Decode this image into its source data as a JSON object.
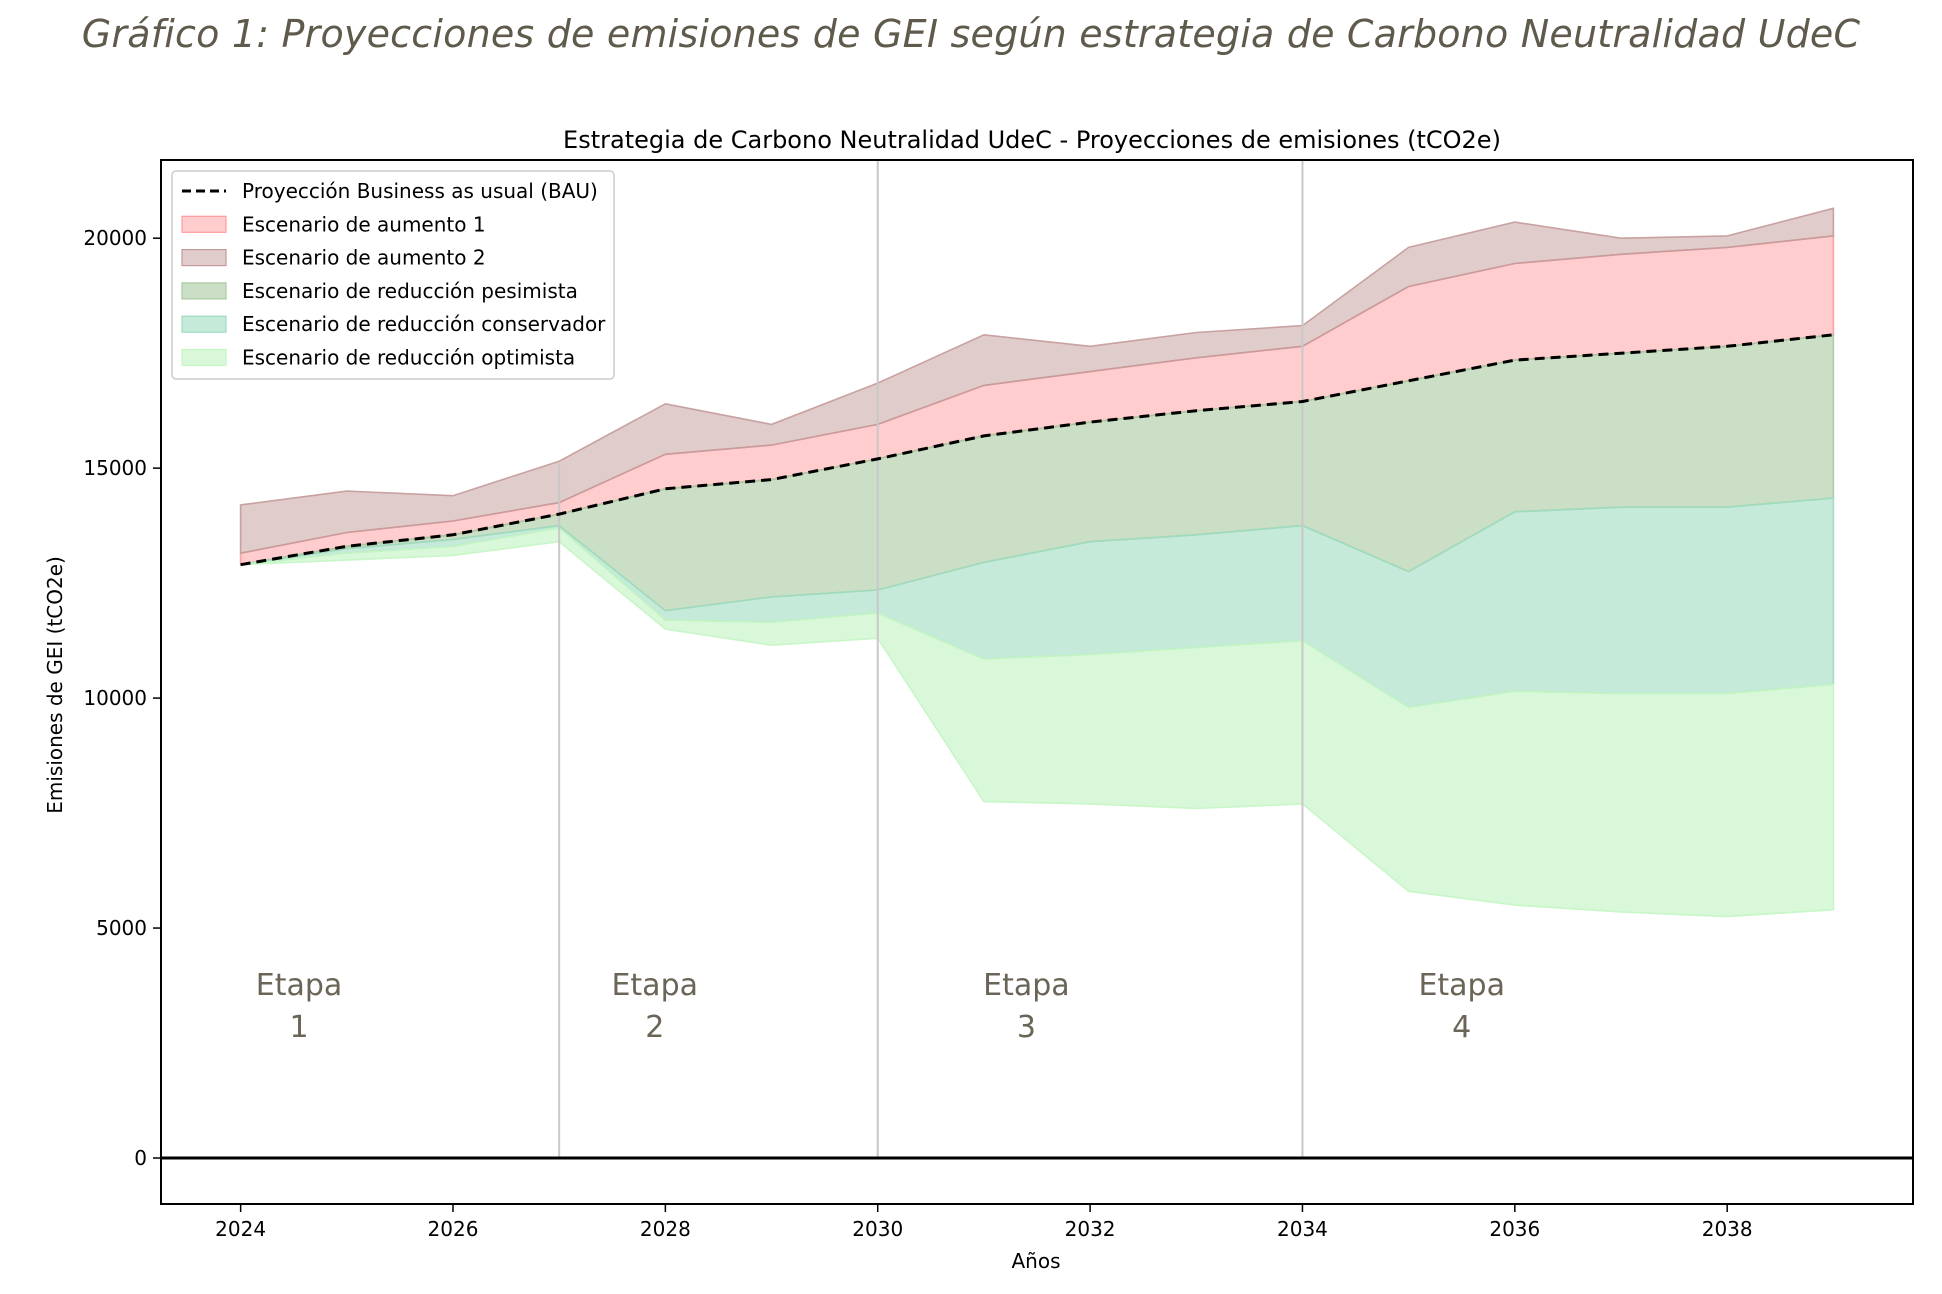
{
  "caption": "Gráfico 1: Proyecciones de emisiones de GEI según estrategia de Carbono Neutralidad UdeC",
  "chart_data": {
    "type": "area",
    "title": "Estrategia de Carbono Neutralidad UdeC - Proyecciones de emisiones (tCO2e)",
    "xlabel": "Años",
    "ylabel": "Emisiones de GEI (tCO2e)",
    "xlim": [
      2023.25,
      2039.75
    ],
    "ylim": [
      -1000,
      21700
    ],
    "xticks": [
      2024,
      2026,
      2028,
      2030,
      2032,
      2034,
      2036,
      2038
    ],
    "yticks": [
      0,
      5000,
      10000,
      15000,
      20000
    ],
    "grid": false,
    "legend_position": "top-left",
    "x": [
      2024,
      2025,
      2026,
      2027,
      2028,
      2029,
      2030,
      2031,
      2032,
      2033,
      2034,
      2035,
      2036,
      2037,
      2038,
      2039
    ],
    "series": [
      {
        "name": "Proyección Business as usual (BAU)",
        "kind": "line",
        "style": "dashed",
        "color": "#000000",
        "values": [
          12900,
          13300,
          13550,
          14000,
          14550,
          14750,
          15200,
          15700,
          16000,
          16250,
          16450,
          16900,
          17350,
          17500,
          17650,
          17900
        ]
      },
      {
        "name": "Escenario de aumento 1",
        "kind": "band",
        "color": "#ff9b9b",
        "alpha": 0.5,
        "lower": [
          12900,
          13300,
          13550,
          14000,
          14550,
          14750,
          15200,
          15700,
          16000,
          16250,
          16450,
          16900,
          17350,
          17500,
          17650,
          17900
        ],
        "upper": [
          13150,
          13600,
          13850,
          14250,
          15300,
          15500,
          15950,
          16800,
          17100,
          17400,
          17650,
          18950,
          19450,
          19650,
          19800,
          20050
        ]
      },
      {
        "name": "Escenario de aumento 2",
        "kind": "band",
        "color": "#c49a9a",
        "alpha": 0.5,
        "lower": [
          13150,
          13600,
          13850,
          14250,
          15300,
          15500,
          15950,
          16800,
          17100,
          17400,
          17650,
          18950,
          19450,
          19650,
          19800,
          20050
        ],
        "upper": [
          14200,
          14500,
          14400,
          15150,
          16400,
          15950,
          16850,
          17900,
          17650,
          17950,
          18100,
          19800,
          20350,
          20000,
          20050,
          20650
        ]
      },
      {
        "name": "Escenario de reducción pesimista",
        "kind": "band",
        "color": "#a8c9a0",
        "alpha": 0.6,
        "lower": [
          12900,
          13250,
          13450,
          13750,
          11900,
          12200,
          12350,
          12950,
          13400,
          13550,
          13750,
          12750,
          14050,
          14150,
          14150,
          14350
        ],
        "upper": [
          12900,
          13300,
          13550,
          14000,
          14550,
          14750,
          15200,
          15700,
          16000,
          16250,
          16450,
          16900,
          17350,
          17500,
          17650,
          17900
        ]
      },
      {
        "name": "Escenario de reducción conservador",
        "kind": "band",
        "color": "#9fdcbf",
        "alpha": 0.6,
        "lower": [
          12900,
          13150,
          13300,
          13700,
          11700,
          11650,
          11850,
          10850,
          10950,
          11100,
          11250,
          9800,
          10150,
          10100,
          10100,
          10300
        ],
        "upper": [
          12900,
          13250,
          13450,
          13750,
          11900,
          12200,
          12350,
          12950,
          13400,
          13550,
          13750,
          12750,
          14050,
          14150,
          14150,
          14350
        ]
      },
      {
        "name": "Escenario de reducción optimista",
        "kind": "band",
        "color": "#c4f5c4",
        "alpha": 0.65,
        "lower": [
          12900,
          13000,
          13100,
          13400,
          11500,
          11150,
          11300,
          7750,
          7700,
          7600,
          7700,
          5800,
          5500,
          5350,
          5250,
          5400
        ],
        "upper": [
          12900,
          13150,
          13300,
          13700,
          11700,
          11650,
          11850,
          10850,
          10950,
          11100,
          11250,
          9800,
          10150,
          10100,
          10100,
          10300
        ]
      }
    ],
    "stage_dividers": [
      2027,
      2030,
      2034
    ],
    "stages": [
      {
        "word": "Etapa",
        "num": "1",
        "x": 2024.55
      },
      {
        "word": "Etapa",
        "num": "2",
        "x": 2027.9
      },
      {
        "word": "Etapa",
        "num": "3",
        "x": 2031.4
      },
      {
        "word": "Etapa",
        "num": "4",
        "x": 2035.5
      }
    ]
  }
}
